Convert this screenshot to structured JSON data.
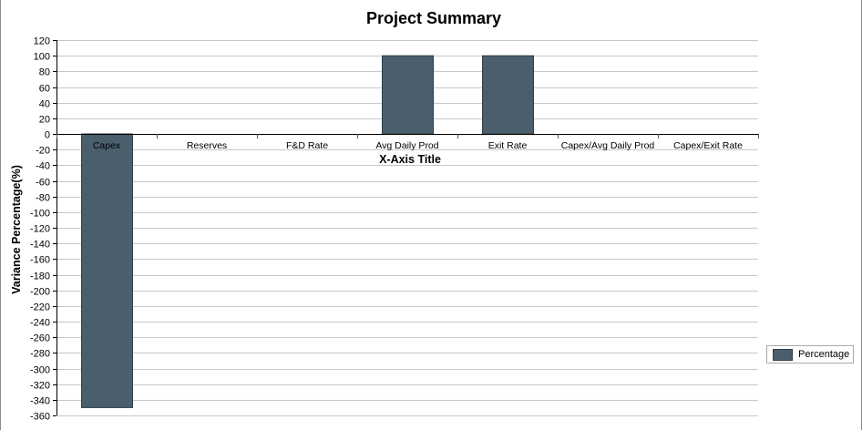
{
  "chart_data": {
    "type": "bar",
    "title": "Project Summary",
    "xlabel": "X-Axis Title",
    "ylabel": "Variance Percentage(%)",
    "categories": [
      "Capex",
      "Reserves",
      "F&D Rate",
      "Avg Daily Prod",
      "Exit Rate",
      "Capex/Avg Daily Prod",
      "Capex/Exit Rate"
    ],
    "series": [
      {
        "name": "Percentage",
        "values": [
          -350,
          0,
          0,
          100,
          100,
          0,
          0
        ],
        "color": "#4a5e6b"
      }
    ],
    "ylim": [
      -360,
      120
    ],
    "yticks": [
      120,
      100,
      80,
      60,
      40,
      20,
      0,
      -20,
      -40,
      -60,
      -80,
      -100,
      -120,
      -140,
      -160,
      -180,
      -200,
      -220,
      -240,
      -260,
      -280,
      -300,
      -320,
      -340,
      -360
    ],
    "grid": true,
    "legend_position": "right"
  }
}
